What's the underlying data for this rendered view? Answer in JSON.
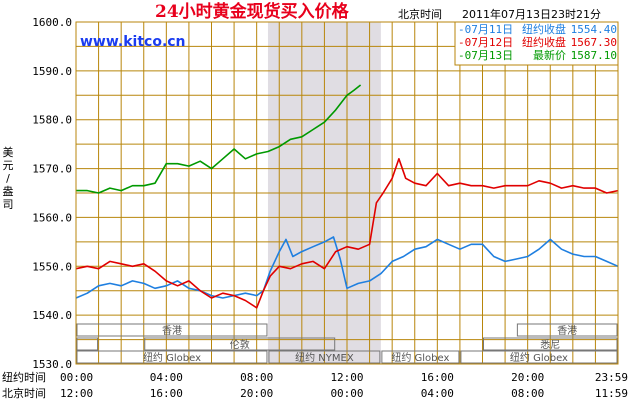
{
  "header": {
    "title": "24小时黄金现货买入价格",
    "zone_label": "北京时间",
    "datetime": "2011年07月13日23时21分",
    "website": "www.kitco.cn"
  },
  "colors": {
    "grid": "#b8860b",
    "shade": "#e0dde3",
    "series_blue": "#1f7fe0",
    "series_red": "#e00000",
    "series_green": "#009900"
  },
  "sessions": {
    "row1": [
      "香港",
      "香港"
    ],
    "row2": [
      "伦敦",
      "悉尼"
    ],
    "row3": [
      "纽约 Globex",
      "纽约 NYMEX",
      "纽约 Globex",
      "纽约 Globex"
    ]
  },
  "chart_data": {
    "type": "line",
    "title": "24小时黄金现货买入价格",
    "ylabel": "美元/盎司",
    "ylim": [
      1530,
      1600
    ],
    "yticks": [
      "1530.0",
      "1540.0",
      "1550.0",
      "1560.0",
      "1570.0",
      "1580.0",
      "1590.0",
      "1600.0"
    ],
    "x_rows": [
      {
        "label": "纽约时间",
        "ticks": [
          "00:00",
          "04:00",
          "08:00",
          "12:00",
          "16:00",
          "20:00",
          "23:59"
        ]
      },
      {
        "label": "北京时间",
        "ticks": [
          "12:00",
          "16:00",
          "20:00",
          "00:00",
          "04:00",
          "08:00",
          "11:59"
        ]
      }
    ],
    "x_unit": "纽约时间 hours",
    "xlim": [
      0,
      24
    ],
    "shaded_range": [
      8.5,
      13.5
    ],
    "grid": true,
    "legend_position": "top-right",
    "series": [
      {
        "name": "07月11日",
        "legend_label": "-07月11日",
        "stat_label": "纽约收盘",
        "stat_value": "1554.40",
        "color": "#1f7fe0",
        "x": [
          0,
          0.5,
          1,
          1.5,
          2,
          2.5,
          3,
          3.5,
          4,
          4.5,
          5,
          5.5,
          6,
          6.5,
          7,
          7.5,
          8,
          8.3,
          8.6,
          9,
          9.3,
          9.6,
          10,
          10.5,
          11,
          11.4,
          11.7,
          12,
          12.5,
          13,
          13.5,
          14,
          14.5,
          15,
          15.5,
          16,
          16.5,
          17,
          17.5,
          18,
          18.5,
          19,
          19.5,
          20,
          20.5,
          21,
          21.5,
          22,
          22.5,
          23,
          23.5,
          24
        ],
        "y": [
          1543.5,
          1544.5,
          1546,
          1546.5,
          1546,
          1547,
          1546.5,
          1545.5,
          1546,
          1547,
          1545.5,
          1545,
          1544,
          1543.5,
          1544,
          1544.5,
          1544,
          1545,
          1549,
          1553,
          1555.5,
          1552,
          1553,
          1554,
          1555,
          1556,
          1551.5,
          1545.5,
          1546.5,
          1547,
          1548.5,
          1551,
          1552,
          1553.5,
          1554,
          1555.5,
          1554.5,
          1553.5,
          1554.5,
          1554.5,
          1552,
          1551,
          1551.5,
          1552,
          1553.5,
          1555.5,
          1553.5,
          1552.5,
          1552,
          1552,
          1551,
          1550
        ]
      },
      {
        "name": "07月12日",
        "legend_label": "-07月12日",
        "stat_label": "纽约收盘",
        "stat_value": "1567.30",
        "color": "#e00000",
        "x": [
          0,
          0.5,
          1,
          1.5,
          2,
          2.5,
          3,
          3.5,
          4,
          4.5,
          5,
          5.5,
          6,
          6.5,
          7,
          7.5,
          8,
          8.3,
          8.6,
          9,
          9.5,
          10,
          10.5,
          11,
          11.5,
          12,
          12.5,
          13,
          13.3,
          13.6,
          14,
          14.3,
          14.6,
          15,
          15.5,
          16,
          16.5,
          17,
          17.5,
          18,
          18.5,
          19,
          19.5,
          20,
          20.5,
          21,
          21.5,
          22,
          22.5,
          23,
          23.5,
          24
        ],
        "y": [
          1549.5,
          1550,
          1549.5,
          1551,
          1550.5,
          1550,
          1550.5,
          1549,
          1547,
          1546,
          1547,
          1545,
          1543.5,
          1544.5,
          1544,
          1543,
          1541.5,
          1545,
          1548,
          1550,
          1549.5,
          1550.5,
          1551,
          1549.5,
          1553,
          1554,
          1553.5,
          1554.5,
          1563,
          1565,
          1568,
          1572,
          1568,
          1567,
          1566.5,
          1569,
          1566.5,
          1567,
          1566.5,
          1566.5,
          1566,
          1566.5,
          1566.5,
          1566.5,
          1567.5,
          1567,
          1566,
          1566.5,
          1566,
          1566,
          1565,
          1565.5
        ]
      },
      {
        "name": "07月13日",
        "legend_label": "-07月13日",
        "stat_label": "最新价",
        "stat_value": "1587.10",
        "color": "#009900",
        "x": [
          0,
          0.5,
          1,
          1.5,
          2,
          2.5,
          3,
          3.5,
          4,
          4.5,
          5,
          5.5,
          6,
          6.5,
          7,
          7.5,
          8,
          8.5,
          9,
          9.5,
          10,
          10.5,
          11,
          11.5,
          12,
          12.3,
          12.6
        ],
        "y": [
          1565.5,
          1565.5,
          1565,
          1566,
          1565.5,
          1566.5,
          1566.5,
          1567,
          1571,
          1571,
          1570.5,
          1571.5,
          1570,
          1572,
          1574,
          1572,
          1573,
          1573.5,
          1574.5,
          1576,
          1576.5,
          1578,
          1579.5,
          1582,
          1585,
          1586,
          1587.1
        ]
      }
    ]
  }
}
